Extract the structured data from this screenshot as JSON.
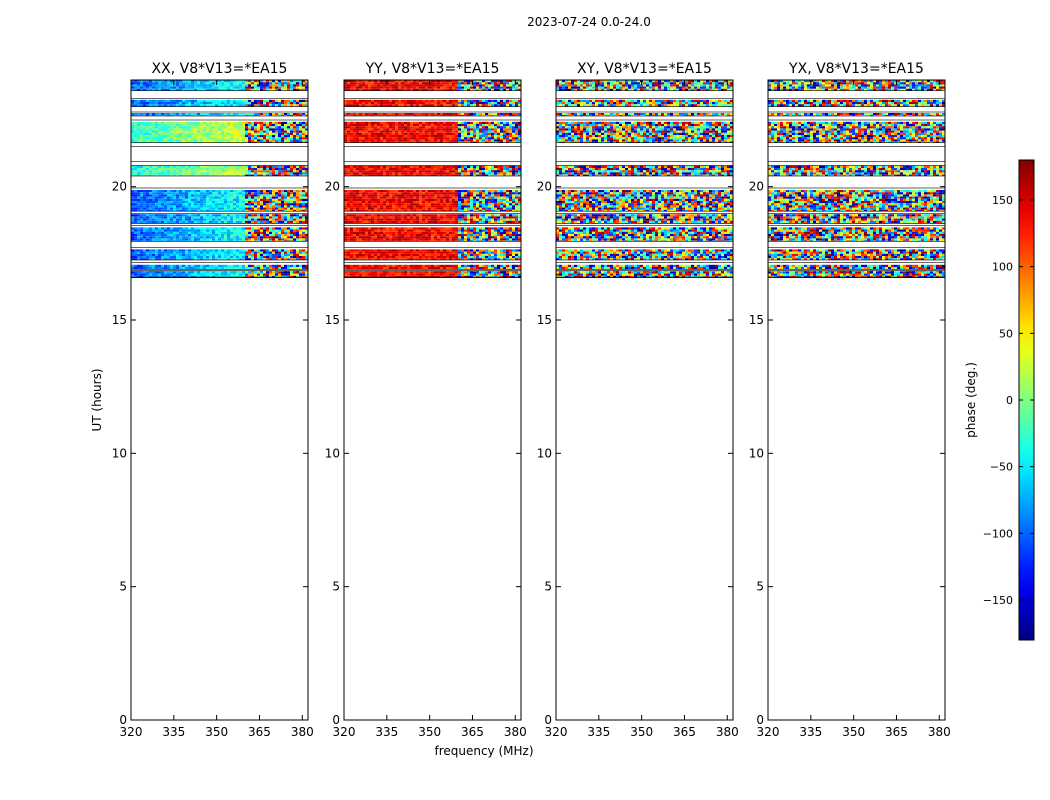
{
  "figure": {
    "suptitle": "2023-07-24 0.0-24.0",
    "xlabel": "frequency (MHz)",
    "ylabel": "UT (hours)",
    "colorbar_label": "phase (deg.)"
  },
  "chart_data": {
    "type": "heatmap",
    "title": "2023-07-24 0.0-24.0",
    "xlabel": "frequency (MHz)",
    "ylabel": "UT (hours)",
    "xlim": [
      320,
      382
    ],
    "ylim": [
      0,
      24
    ],
    "x_ticks": [
      320,
      335,
      350,
      365,
      380
    ],
    "y_ticks": [
      0,
      5,
      10,
      15,
      20
    ],
    "colorbar": {
      "label": "phase (deg.)",
      "range": [
        -180,
        180
      ],
      "ticks": [
        -150,
        -100,
        -50,
        0,
        50,
        100,
        150
      ],
      "colormap": "jet",
      "colors": [
        "#00007f",
        "#0000ff",
        "#007fff",
        "#00ffff",
        "#7fff7f",
        "#ffff00",
        "#ff7f00",
        "#ff0000",
        "#7f0000"
      ]
    },
    "data_time_range_hours": [
      16.6,
      24.0
    ],
    "panels": [
      {
        "title": "XX, V8*V13=*EA15"
      },
      {
        "title": "YY, V8*V13=*EA15"
      },
      {
        "title": "XY, V8*V13=*EA15"
      },
      {
        "title": "YX, V8*V13=*EA15"
      }
    ]
  }
}
